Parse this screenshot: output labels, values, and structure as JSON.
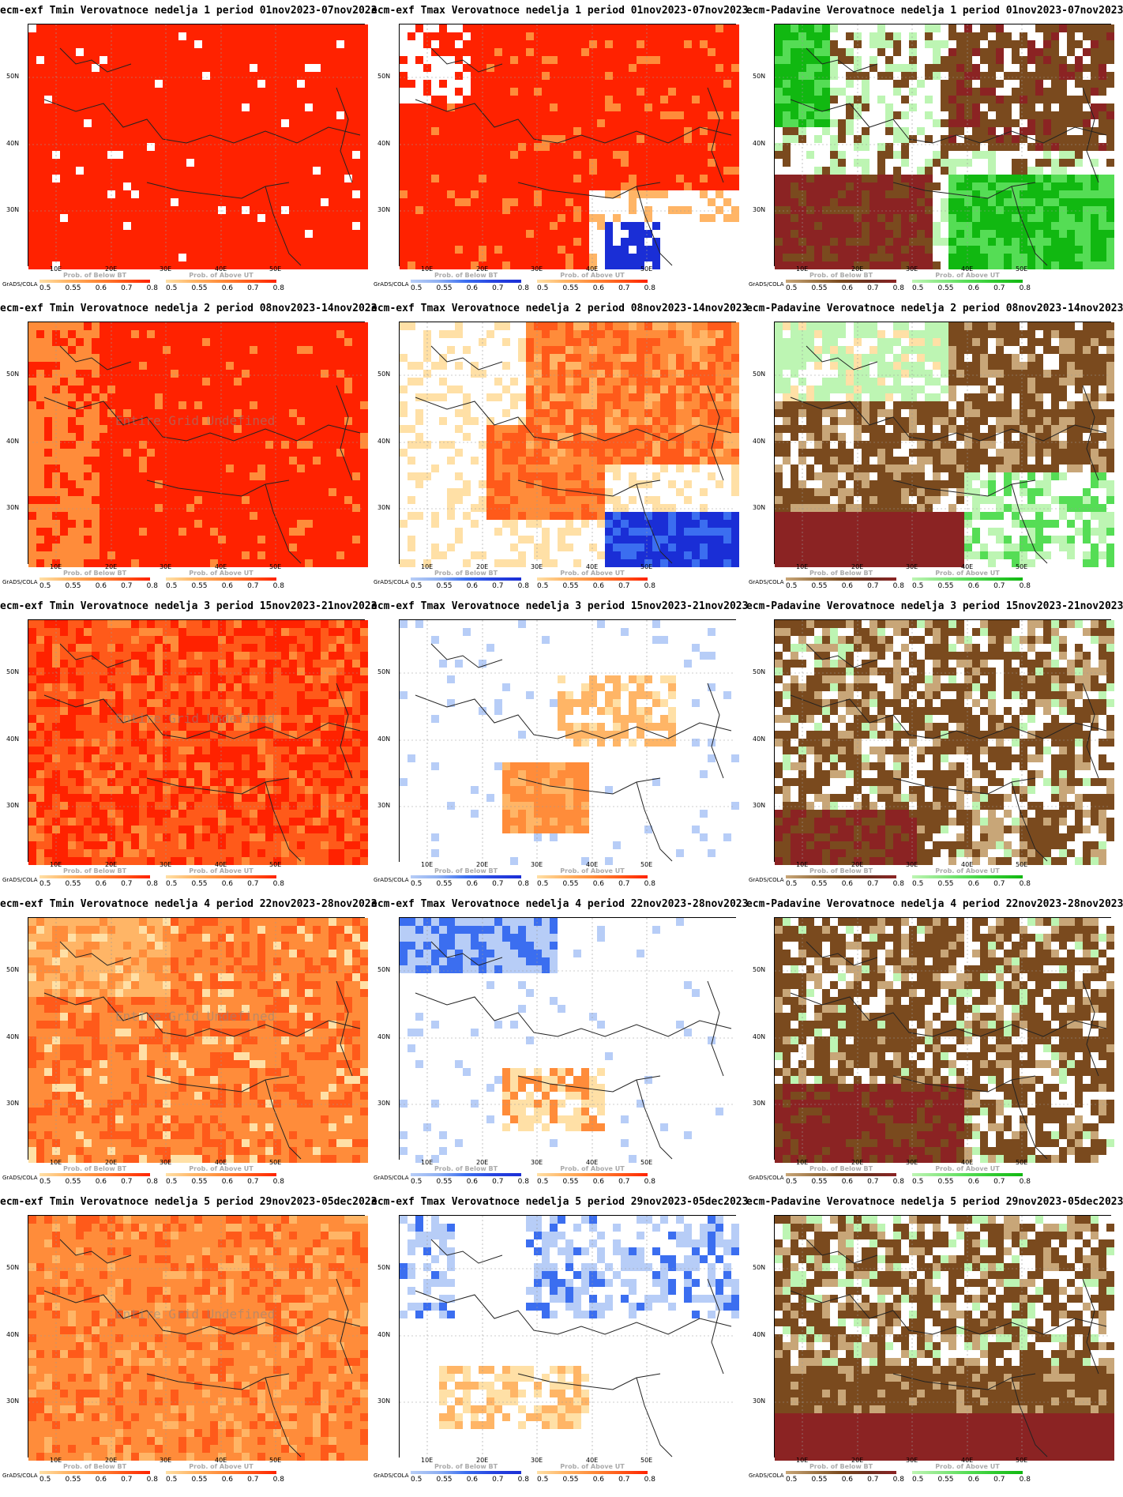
{
  "colors": {
    "red_dark": "#ff2200",
    "red_mid": "#ff5a1a",
    "orange": "#ff8c3a",
    "orange_light": "#ffb566",
    "peach": "#ffe0a6",
    "blue_dark": "#1a2ed6",
    "blue_mid": "#3b6ef0",
    "blue_light": "#b7cdf7",
    "green_dark": "#11b811",
    "green_mid": "#55dd55",
    "green_light": "#bdf5b3",
    "brown_dark": "#8b2323",
    "brown_mid": "#7a4a1e",
    "brown_light": "#c8a678",
    "white": "#ffffff"
  },
  "axes": {
    "lat_labels": [
      "50N",
      "40N",
      "30N"
    ],
    "lon_labels": [
      "10E",
      "20E",
      "30E",
      "40E",
      "50E"
    ]
  },
  "legend": {
    "below_label": "Prob. of Below BT",
    "above_label": "Prob. of Above UT",
    "ticks": [
      "0.5",
      "0.55",
      "0.6",
      "0.7",
      "0.8"
    ],
    "credit": "GrADS/COLA",
    "undefined_note": "Entire Grid Undefined"
  },
  "panels": [
    {
      "title": "ecm-exf Tmin Verovatnoce nedelja 1 period 01nov2023-07nov2023",
      "var": "tmin",
      "week": 1,
      "undef": false
    },
    {
      "title": "ecm-exf Tmax Verovatnoce nedelja 1 period 01nov2023-07nov2023",
      "var": "tmax",
      "week": 1,
      "undef": false
    },
    {
      "title": "ecm-Padavine Verovatnoce nedelja 1 period 01nov2023-07nov2023",
      "var": "precip",
      "week": 1,
      "undef": false
    },
    {
      "title": "ecm-exf Tmin Verovatnoce nedelja 2 period 08nov2023-14nov2023",
      "var": "tmin",
      "week": 2,
      "undef": true
    },
    {
      "title": "ecm-exf Tmax Verovatnoce nedelja 2 period 08nov2023-14nov2023",
      "var": "tmax",
      "week": 2,
      "undef": false
    },
    {
      "title": "ecm-Padavine Verovatnoce nedelja 2 period 08nov2023-14nov2023",
      "var": "precip",
      "week": 2,
      "undef": false
    },
    {
      "title": "ecm-exf Tmin Verovatnoce nedelja 3 period 15nov2023-21nov2023",
      "var": "tmin",
      "week": 3,
      "undef": true
    },
    {
      "title": "ecm-exf Tmax Verovatnoce nedelja 3 period 15nov2023-21nov2023",
      "var": "tmax",
      "week": 3,
      "undef": false
    },
    {
      "title": "ecm-Padavine Verovatnoce nedelja 3 period 15nov2023-21nov2023",
      "var": "precip",
      "week": 3,
      "undef": false
    },
    {
      "title": "ecm-exf Tmin Verovatnoce nedelja 4 period 22nov2023-28nov2023",
      "var": "tmin",
      "week": 4,
      "undef": true
    },
    {
      "title": "ecm-exf Tmax Verovatnoce nedelja 4 period 22nov2023-28nov2023",
      "var": "tmax",
      "week": 4,
      "undef": false
    },
    {
      "title": "ecm-Padavine Verovatnoce nedelja 4 period 22nov2023-28nov2023",
      "var": "precip",
      "week": 4,
      "undef": false
    },
    {
      "title": "ecm-exf Tmin Verovatnoce nedelja 5 period 29nov2023-05dec2023",
      "var": "tmin",
      "week": 5,
      "undef": true
    },
    {
      "title": "ecm-exf Tmax Verovatnoce nedelja 5 period 29nov2023-05dec2023",
      "var": "tmax",
      "week": 5,
      "undef": false
    },
    {
      "title": "ecm-Padavine Verovatnoce nedelja 5 period 29nov2023-05dec2023",
      "var": "precip",
      "week": 5,
      "undef": false
    }
  ]
}
